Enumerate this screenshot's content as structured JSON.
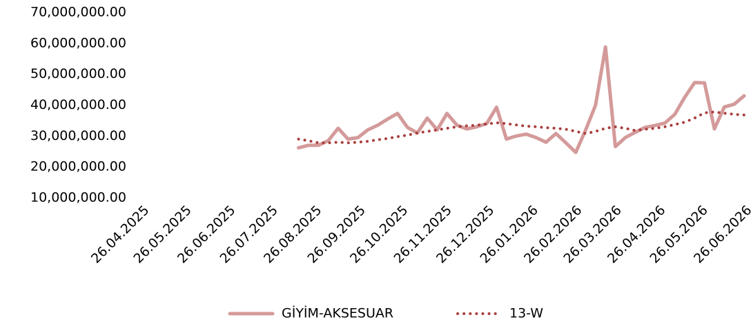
{
  "chart_data": {
    "type": "line",
    "x": [
      "15.08.2025",
      "22.08.2025",
      "29.08.2025",
      "05.09.2025",
      "12.09.2025",
      "19.09.2025",
      "26.09.2025",
      "03.10.2025",
      "10.10.2025",
      "17.10.2025",
      "24.10.2025",
      "31.10.2025",
      "07.11.2025",
      "14.11.2025",
      "21.11.2025",
      "28.11.2025",
      "05.12.2025",
      "12.12.2025",
      "19.12.2025",
      "26.12.2025",
      "02.01.2026",
      "09.01.2026",
      "16.01.2026",
      "23.01.2026",
      "30.01.2026",
      "06.02.2026",
      "13.02.2026",
      "20.02.2026",
      "27.02.2026",
      "06.03.2026",
      "13.03.2026",
      "20.03.2026",
      "27.03.2026",
      "03.04.2026",
      "10.04.2026",
      "17.04.2026",
      "24.04.2026",
      "01.05.2026",
      "08.05.2026",
      "15.05.2026",
      "22.05.2026",
      "29.05.2026",
      "05.06.2026",
      "12.06.2026",
      "19.06.2026",
      "26.06.2026"
    ],
    "series": [
      {
        "name": "GİYİM-AKSESUAR",
        "color": "#d49a9a",
        "style": "solid",
        "values": [
          26200000,
          27000000,
          27000000,
          28500000,
          32500000,
          29000000,
          29500000,
          32000000,
          33500000,
          35500000,
          37300000,
          32800000,
          31000000,
          35800000,
          32000000,
          37300000,
          33500000,
          32300000,
          33000000,
          34000000,
          39300000,
          29000000,
          30000000,
          30600000,
          29500000,
          28000000,
          30800000,
          27800000,
          24700000,
          32000000,
          40000000,
          58800000,
          26600000,
          29500000,
          31200000,
          32800000,
          33400000,
          34200000,
          37000000,
          42500000,
          47300000,
          47200000,
          32300000,
          39400000,
          40300000,
          43000000
        ]
      },
      {
        "name": "13-W",
        "color": "#a9403f",
        "style": "dotted",
        "values": [
          29000000,
          28500000,
          27800000,
          27800000,
          28000000,
          27800000,
          28000000,
          28300000,
          28800000,
          29200000,
          29800000,
          30300000,
          31000000,
          31500000,
          32000000,
          32500000,
          33000000,
          33300000,
          33500000,
          33900000,
          34300000,
          34000000,
          33600000,
          33200000,
          33000000,
          32700000,
          32500000,
          32200000,
          31500000,
          30800000,
          31500000,
          32500000,
          33000000,
          32500000,
          31800000,
          32200000,
          32500000,
          33000000,
          33700000,
          34500000,
          35800000,
          37500000,
          37800000,
          37400000,
          37000000,
          36800000
        ]
      }
    ],
    "xlim": [
      "26.04.2025",
      "26.06.2026"
    ],
    "xticks": [
      "26.04.2025",
      "26.05.2025",
      "26.06.2025",
      "26.07.2025",
      "26.08.2025",
      "26.09.2025",
      "26.10.2025",
      "26.11.2025",
      "26.12.2025",
      "26.01.2026",
      "26.02.2026",
      "26.03.2026",
      "26.04.2026",
      "26.05.2026",
      "26.06.2026"
    ],
    "ylim": [
      10000000,
      70000000
    ],
    "yticks": [
      {
        "value": 10000000,
        "label": "10,000,000.00"
      },
      {
        "value": 20000000,
        "label": "20,000,000.00"
      },
      {
        "value": 30000000,
        "label": "30,000,000.00"
      },
      {
        "value": 40000000,
        "label": "40,000,000.00"
      },
      {
        "value": 50000000,
        "label": "50,000,000.00"
      },
      {
        "value": 60000000,
        "label": "60,000,000.00"
      },
      {
        "value": 70000000,
        "label": "70,000,000.00"
      }
    ],
    "grid": false,
    "legend": "bottom"
  }
}
